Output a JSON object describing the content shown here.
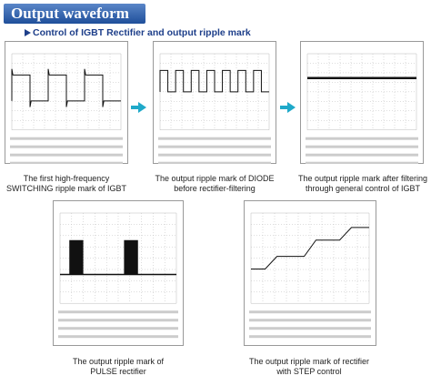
{
  "header": {
    "title": "Output waveform",
    "subtitle": "Control of IGBT Rectifier and output ripple mark"
  },
  "panels": [
    {
      "caption": [
        "The first high-frequency",
        "SWITCHING ripple mark of IGBT"
      ]
    },
    {
      "caption": [
        "The output ripple mark of DIODE",
        "before rectifier-filtering"
      ]
    },
    {
      "caption": [
        "The output ripple mark after filtering",
        "through general control of IGBT"
      ]
    },
    {
      "caption": [
        "The output ripple mark of",
        "PULSE rectifier"
      ]
    },
    {
      "caption": [
        "The output ripple mark of rectifier",
        "with STEP control"
      ]
    }
  ]
}
